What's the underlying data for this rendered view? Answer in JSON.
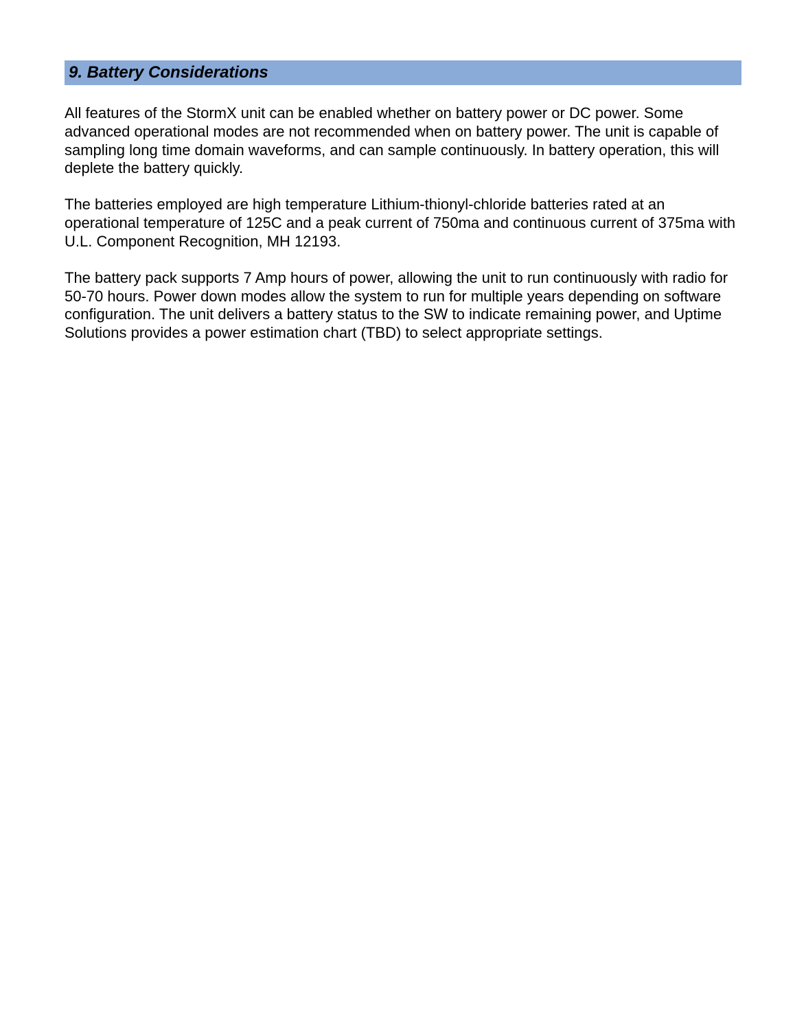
{
  "section": {
    "heading": "9. Battery Considerations",
    "heading_bg": "#8aaad8",
    "heading_text_color": "#000000",
    "heading_fontsize": 24,
    "heading_fontweight": "bold",
    "heading_fontstyle": "italic"
  },
  "paragraphs": {
    "p1": "All features of the StormX unit can be enabled whether on battery power or DC power.  Some advanced operational modes are not recommended when on battery power.  The unit is capable of sampling long time domain waveforms, and can sample continuously. In battery operation, this will deplete the battery quickly.",
    "p2": "The batteries employed are high temperature Lithium-thionyl-chloride batteries rated at an operational temperature of 125C and a peak current of 750ma and continuous current of 375ma with U.L. Component Recognition, MH 12193.",
    "p3": "The battery pack supports 7 Amp hours of power, allowing the unit to run continuously with radio for 50-70 hours.  Power down modes allow the system to run for multiple years depending on software configuration.  The unit delivers a battery status to the SW to indicate remaining power, and Uptime Solutions provides a power estimation chart (TBD) to select appropriate settings."
  },
  "body": {
    "background_color": "#ffffff",
    "text_color": "#000000",
    "body_fontsize": 22,
    "font_family": "Arial"
  }
}
